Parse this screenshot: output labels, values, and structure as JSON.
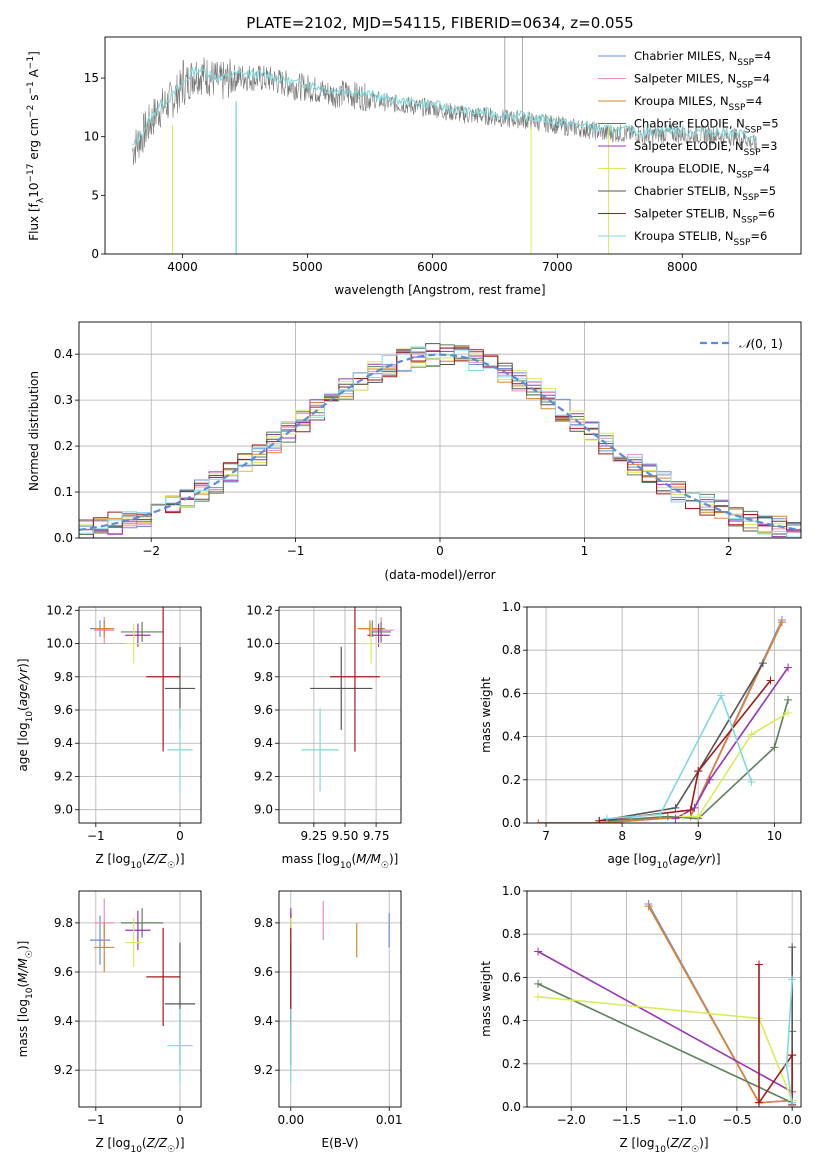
{
  "title": "PLATE=2102, MJD=54115, FIBERID=0634, z=0.055",
  "colors": {
    "Chabrier MILES": "#6a8ed8",
    "Salpeter MILES": "#e88fc0",
    "Kroupa MILES": "#d9852a",
    "Chabrier ELODIE": "#5b7f5f",
    "Salpeter ELODIE": "#9a33b5",
    "Kroupa ELODIE": "#d9ec58",
    "Chabrier STELIB": "#555555",
    "Salpeter STELIB": "#a31a1a",
    "Kroupa STELIB": "#80d9dc",
    "data": "#777777",
    "normal": "#5b8cd4"
  },
  "chart_data": [
    {
      "id": "spectrum",
      "type": "line",
      "xlabel": "wavelength [Angstrom, rest frame]",
      "ylabel": "Flux [fλ10−17 erg cm−2 s−1 A−1]",
      "xlim": [
        3380,
        8950
      ],
      "ylim": [
        0,
        18.5
      ],
      "xticks": [
        "4000",
        "5000",
        "6000",
        "7000",
        "8000"
      ],
      "yticks": [
        "0",
        "5",
        "10",
        "15"
      ],
      "continuum_points": [
        [
          3600,
          8.8
        ],
        [
          3700,
          10.5
        ],
        [
          3800,
          12.2
        ],
        [
          3900,
          13.0
        ],
        [
          4000,
          14.2
        ],
        [
          4100,
          15.4
        ],
        [
          4200,
          15.2
        ],
        [
          4300,
          14.6
        ],
        [
          4400,
          15.0
        ],
        [
          4500,
          15.1
        ],
        [
          4600,
          15.0
        ],
        [
          4700,
          14.9
        ],
        [
          4800,
          14.6
        ],
        [
          4900,
          14.3
        ],
        [
          5000,
          14.2
        ],
        [
          5100,
          13.9
        ],
        [
          5200,
          13.6
        ],
        [
          5300,
          13.7
        ],
        [
          5400,
          13.5
        ],
        [
          5500,
          13.3
        ],
        [
          5600,
          13.0
        ],
        [
          5700,
          12.8
        ],
        [
          5800,
          12.7
        ],
        [
          5900,
          12.5
        ],
        [
          6000,
          12.5
        ],
        [
          6100,
          12.2
        ],
        [
          6200,
          12.0
        ],
        [
          6300,
          11.8
        ],
        [
          6400,
          11.8
        ],
        [
          6500,
          11.7
        ],
        [
          6600,
          11.5
        ],
        [
          6700,
          11.5
        ],
        [
          6800,
          11.3
        ],
        [
          6900,
          11.2
        ],
        [
          7000,
          11.0
        ],
        [
          7100,
          10.8
        ],
        [
          7200,
          10.7
        ],
        [
          7300,
          10.5
        ],
        [
          7400,
          10.3
        ],
        [
          7500,
          10.3
        ],
        [
          7600,
          10.2
        ],
        [
          7700,
          10.1
        ],
        [
          7800,
          10.2
        ],
        [
          7900,
          10.3
        ],
        [
          8000,
          10.2
        ],
        [
          8100,
          10.1
        ],
        [
          8200,
          10.2
        ],
        [
          8300,
          10.1
        ],
        [
          8400,
          10.0
        ],
        [
          8500,
          9.9
        ],
        [
          8600,
          9.2
        ]
      ],
      "data_note_lines_x": [
        3920,
        4430,
        6790,
        7410
      ],
      "legend": [
        "Chabrier MILES, N_SSP=4",
        "Salpeter MILES, N_SSP=4",
        "Kroupa MILES, N_SSP=4",
        "Chabrier ELODIE, N_SSP=5",
        "Salpeter ELODIE, N_SSP=3",
        "Kroupa ELODIE, N_SSP=4",
        "Chabrier STELIB, N_SSP=5",
        "Salpeter STELIB, N_SSP=6",
        "Kroupa STELIB, N_SSP=6"
      ]
    },
    {
      "id": "residuals",
      "type": "histogram",
      "xlabel": "(data-model)/error",
      "ylabel": "Normed distribution",
      "xlim": [
        -2.5,
        2.5
      ],
      "ylim": [
        0,
        0.47
      ],
      "xticks": [
        "−2",
        "−1",
        "0",
        "1",
        "2"
      ],
      "yticks": [
        "0.0",
        "0.1",
        "0.2",
        "0.3",
        "0.4"
      ],
      "bin_width": 0.1,
      "legend": "N(0,1)",
      "grid": true
    },
    {
      "id": "age_vs_z",
      "type": "errorbar",
      "xlabel": "Z [log10(Z/Z☉)]",
      "ylabel": "age  [log10(age/yr)]",
      "xlim": [
        -1.2,
        0.25
      ],
      "ylim": [
        8.92,
        10.22
      ],
      "xticks": [
        "−1",
        "0"
      ],
      "yticks": [
        "9.0",
        "9.2",
        "9.4",
        "9.6",
        "9.8",
        "10.0",
        "10.2"
      ],
      "points": [
        {
          "m": "Chabrier MILES",
          "x": -0.95,
          "xe": 0.12,
          "y": 10.09,
          "ye": 0.05
        },
        {
          "m": "Salpeter MILES",
          "x": -0.9,
          "xe": 0.12,
          "y": 10.08,
          "ye": 0.08
        },
        {
          "m": "Kroupa MILES",
          "x": -0.9,
          "xe": 0.12,
          "y": 10.09,
          "ye": 0.05
        },
        {
          "m": "Chabrier ELODIE",
          "x": -0.45,
          "xe": 0.25,
          "y": 10.07,
          "ye": 0.06
        },
        {
          "m": "Salpeter ELODIE",
          "x": -0.5,
          "xe": 0.15,
          "y": 10.05,
          "ye": 0.07
        },
        {
          "m": "Kroupa ELODIE",
          "x": -0.55,
          "xe": 0.1,
          "y": 10.0,
          "ye": 0.12
        },
        {
          "m": "Chabrier STELIB",
          "x": 0.0,
          "xe": 0.18,
          "y": 9.73,
          "ye": 0.25
        },
        {
          "m": "Salpeter STELIB",
          "x": -0.2,
          "xe": 0.2,
          "y": 9.8,
          "ye": 0.45
        },
        {
          "m": "Kroupa STELIB",
          "x": 0.0,
          "xe": 0.15,
          "y": 9.36,
          "ye": 0.25
        }
      ]
    },
    {
      "id": "age_vs_mass",
      "type": "errorbar",
      "xlabel": "mass [log10(M/M☉)]",
      "xlim": [
        8.97,
        9.95
      ],
      "ylim": [
        8.92,
        10.22
      ],
      "xticks": [
        "9.25",
        "9.50",
        "9.75"
      ],
      "yticks": [
        "9.0",
        "9.2",
        "9.4",
        "9.6",
        "9.8",
        "10.0",
        "10.2"
      ],
      "points": [
        {
          "m": "Chabrier MILES",
          "x": 9.72,
          "xe": 0.1,
          "y": 10.09,
          "ye": 0.05
        },
        {
          "m": "Salpeter MILES",
          "x": 9.79,
          "xe": 0.1,
          "y": 10.08,
          "ye": 0.08
        },
        {
          "m": "Kroupa MILES",
          "x": 9.7,
          "xe": 0.1,
          "y": 10.09,
          "ye": 0.05
        },
        {
          "m": "Chabrier ELODIE",
          "x": 9.79,
          "xe": 0.08,
          "y": 10.07,
          "ye": 0.06
        },
        {
          "m": "Salpeter ELODIE",
          "x": 9.77,
          "xe": 0.09,
          "y": 10.05,
          "ye": 0.07
        },
        {
          "m": "Kroupa ELODIE",
          "x": 9.71,
          "xe": 0.1,
          "y": 10.0,
          "ye": 0.12
        },
        {
          "m": "Chabrier STELIB",
          "x": 9.47,
          "xe": 0.25,
          "y": 9.73,
          "ye": 0.25
        },
        {
          "m": "Salpeter STELIB",
          "x": 9.58,
          "xe": 0.2,
          "y": 9.8,
          "ye": 0.45
        },
        {
          "m": "Kroupa STELIB",
          "x": 9.3,
          "xe": 0.15,
          "y": 9.36,
          "ye": 0.25
        }
      ]
    },
    {
      "id": "weight_vs_age",
      "type": "line",
      "xlabel": "age  [log10(age/yr)]",
      "ylabel": "mass weight",
      "xlim": [
        6.75,
        10.35
      ],
      "ylim": [
        0,
        1.0
      ],
      "xticks": [
        "7",
        "8",
        "9",
        "10"
      ],
      "yticks": [
        "0.0",
        "0.2",
        "0.4",
        "0.6",
        "0.8",
        "1.0"
      ],
      "series": [
        {
          "m": "Chabrier MILES",
          "points": [
            [
              6.9,
              0.0
            ],
            [
              7.7,
              0.0
            ],
            [
              8.9,
              0.03
            ],
            [
              10.1,
              0.94
            ]
          ]
        },
        {
          "m": "Salpeter MILES",
          "points": [
            [
              6.9,
              0.0
            ],
            [
              7.7,
              0.0
            ],
            [
              8.9,
              0.03
            ],
            [
              10.1,
              0.93
            ]
          ]
        },
        {
          "m": "Kroupa MILES",
          "points": [
            [
              6.9,
              0.0
            ],
            [
              7.7,
              0.0
            ],
            [
              8.9,
              0.03
            ],
            [
              10.1,
              0.93
            ]
          ]
        },
        {
          "m": "Chabrier ELODIE",
          "points": [
            [
              7.8,
              0.01
            ],
            [
              8.6,
              0.03
            ],
            [
              9.0,
              0.02
            ],
            [
              10.0,
              0.35
            ],
            [
              10.18,
              0.57
            ]
          ]
        },
        {
          "m": "Salpeter ELODIE",
          "points": [
            [
              8.7,
              0.02
            ],
            [
              8.95,
              0.07
            ],
            [
              9.15,
              0.2
            ],
            [
              10.18,
              0.72
            ]
          ]
        },
        {
          "m": "Kroupa ELODIE",
          "points": [
            [
              8.8,
              0.03
            ],
            [
              9.0,
              0.03
            ],
            [
              9.7,
              0.41
            ],
            [
              10.18,
              0.51
            ]
          ]
        },
        {
          "m": "Chabrier STELIB",
          "points": [
            [
              7.7,
              0.01
            ],
            [
              8.7,
              0.07
            ],
            [
              9.0,
              0.24
            ],
            [
              9.85,
              0.74
            ]
          ]
        },
        {
          "m": "Salpeter STELIB",
          "points": [
            [
              7.7,
              0.01
            ],
            [
              8.9,
              0.06
            ],
            [
              9.0,
              0.24
            ],
            [
              9.95,
              0.66
            ]
          ]
        },
        {
          "m": "Kroupa STELIB",
          "points": [
            [
              7.8,
              0.02
            ],
            [
              8.5,
              0.04
            ],
            [
              9.3,
              0.59
            ],
            [
              9.7,
              0.19
            ]
          ]
        }
      ]
    },
    {
      "id": "mass_vs_z",
      "type": "errorbar",
      "xlabel": "Z [log10(Z/Z☉)]",
      "ylabel": "mass [log10(M/M☉)]",
      "xlim": [
        -1.2,
        0.25
      ],
      "ylim": [
        9.05,
        9.93
      ],
      "xticks": [
        "−1",
        "0"
      ],
      "yticks": [
        "9.2",
        "9.4",
        "9.6",
        "9.8"
      ],
      "points": [
        {
          "m": "Chabrier MILES",
          "x": -0.95,
          "xe": 0.12,
          "y": 9.73,
          "ye": 0.1
        },
        {
          "m": "Salpeter MILES",
          "x": -0.9,
          "xe": 0.12,
          "y": 9.8,
          "ye": 0.1
        },
        {
          "m": "Kroupa MILES",
          "x": -0.9,
          "xe": 0.12,
          "y": 9.7,
          "ye": 0.1
        },
        {
          "m": "Chabrier ELODIE",
          "x": -0.45,
          "xe": 0.25,
          "y": 9.8,
          "ye": 0.06
        },
        {
          "m": "Salpeter ELODIE",
          "x": -0.5,
          "xe": 0.15,
          "y": 9.77,
          "ye": 0.08
        },
        {
          "m": "Kroupa ELODIE",
          "x": -0.55,
          "xe": 0.1,
          "y": 9.72,
          "ye": 0.1
        },
        {
          "m": "Chabrier STELIB",
          "x": 0.0,
          "xe": 0.18,
          "y": 9.47,
          "ye": 0.25
        },
        {
          "m": "Salpeter STELIB",
          "x": -0.2,
          "xe": 0.2,
          "y": 9.58,
          "ye": 0.2
        },
        {
          "m": "Kroupa STELIB",
          "x": 0.0,
          "xe": 0.15,
          "y": 9.3,
          "ye": 0.15
        }
      ]
    },
    {
      "id": "mass_vs_ebv",
      "type": "errorbar",
      "xlabel": "E(B-V)",
      "xlim": [
        -0.0012,
        0.0112
      ],
      "ylim": [
        9.05,
        9.93
      ],
      "xticks": [
        "0.00",
        "0.01"
      ],
      "yticks": [
        "9.2",
        "9.4",
        "9.6",
        "9.8"
      ],
      "points": [
        {
          "m": "Chabrier MILES",
          "x": 0.01,
          "y": 9.77,
          "ye": 0.07
        },
        {
          "m": "Salpeter MILES",
          "x": 0.0033,
          "y": 9.81,
          "ye": 0.08
        },
        {
          "m": "Kroupa MILES",
          "x": 0.0067,
          "y": 9.73,
          "ye": 0.07
        },
        {
          "m": "Chabrier ELODIE",
          "x": 0.0,
          "y": 9.78,
          "ye": 0.06
        },
        {
          "m": "Salpeter ELODIE",
          "x": 0.0,
          "y": 9.8,
          "ye": 0.06
        },
        {
          "m": "Kroupa ELODIE",
          "x": 0.0,
          "y": 9.72,
          "ye": 0.1
        },
        {
          "m": "Chabrier STELIB",
          "x": 0.0,
          "y": 9.47,
          "ye": 0.25
        },
        {
          "m": "Salpeter STELIB",
          "x": 0.0,
          "y": 9.58,
          "ye": 0.2
        },
        {
          "m": "Kroupa STELIB",
          "x": 0.0,
          "y": 9.3,
          "ye": 0.15
        }
      ]
    },
    {
      "id": "weight_vs_z",
      "type": "line",
      "xlabel": "Z [log10(Z/Z☉)]",
      "ylabel": "mass weight",
      "xlim": [
        -2.4,
        0.08
      ],
      "ylim": [
        0,
        1.0
      ],
      "xticks": [
        "−2.0",
        "−1.5",
        "−1.0",
        "−0.5",
        "0.0"
      ],
      "yticks": [
        "0.0",
        "0.2",
        "0.4",
        "0.6",
        "0.8",
        "1.0"
      ],
      "series": [
        {
          "m": "Chabrier MILES",
          "points": [
            [
              -1.3,
              0.94
            ],
            [
              -0.3,
              0.02
            ],
            [
              0.0,
              0.03
            ]
          ]
        },
        {
          "m": "Salpeter MILES",
          "points": [
            [
              -1.3,
              0.93
            ],
            [
              -0.3,
              0.02
            ],
            [
              0.0,
              0.03
            ]
          ]
        },
        {
          "m": "Kroupa MILES",
          "points": [
            [
              -1.3,
              0.93
            ],
            [
              -0.3,
              0.02
            ],
            [
              0.0,
              0.03
            ]
          ]
        },
        {
          "m": "Chabrier ELODIE",
          "points": [
            [
              -2.3,
              0.57
            ],
            [
              0.0,
              0.02
            ],
            [
              0.0,
              0.35
            ]
          ]
        },
        {
          "m": "Salpeter ELODIE",
          "points": [
            [
              -2.3,
              0.72
            ],
            [
              0.0,
              0.07
            ]
          ]
        },
        {
          "m": "Kroupa ELODIE",
          "points": [
            [
              -2.3,
              0.51
            ],
            [
              -0.3,
              0.41
            ],
            [
              0.0,
              0.03
            ]
          ]
        },
        {
          "m": "Chabrier STELIB",
          "points": [
            [
              0.0,
              0.74
            ],
            [
              0.0,
              0.24
            ],
            [
              0.0,
              0.01
            ]
          ]
        },
        {
          "m": "Salpeter STELIB",
          "points": [
            [
              -0.3,
              0.66
            ],
            [
              -0.3,
              0.02
            ],
            [
              0.0,
              0.24
            ],
            [
              0.0,
              0.01
            ]
          ]
        },
        {
          "m": "Kroupa STELIB",
          "points": [
            [
              0.0,
              0.59
            ],
            [
              -0.05,
              0.19
            ],
            [
              0.0,
              0.02
            ]
          ]
        }
      ]
    }
  ]
}
